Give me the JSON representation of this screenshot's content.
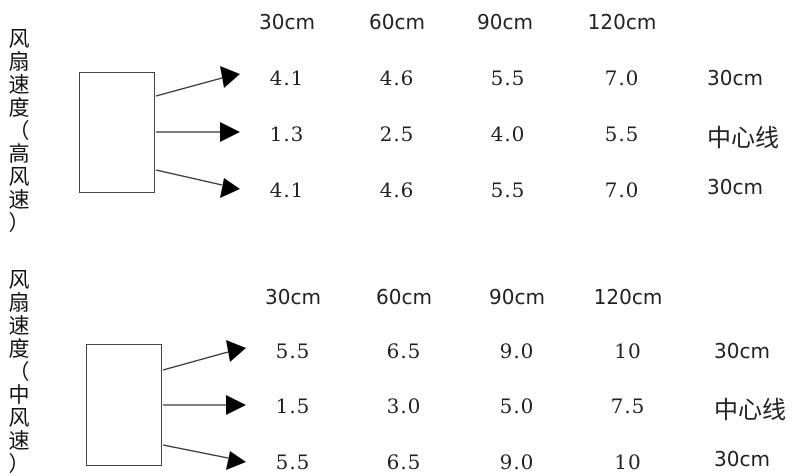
{
  "panels": [
    {
      "label_chars": [
        "风",
        "扇",
        "速",
        "度",
        "（",
        "高",
        "风",
        "速",
        "）"
      ],
      "headers": [
        "30cm",
        "60cm",
        "90cm",
        "120cm"
      ],
      "rows": [
        {
          "values": [
            "4.1",
            "4.6",
            "5.5",
            "7.0"
          ],
          "side": "30cm"
        },
        {
          "values": [
            "1.3",
            "2.5",
            "4.0",
            "5.5"
          ],
          "side": "中心线"
        },
        {
          "values": [
            "4.1",
            "4.6",
            "5.5",
            "7.0"
          ],
          "side": "30cm"
        }
      ]
    },
    {
      "label_chars": [
        "风",
        "扇",
        "速",
        "度",
        "（",
        "中",
        "风",
        "速",
        "）"
      ],
      "headers": [
        "30cm",
        "60cm",
        "90cm",
        "120cm"
      ],
      "rows": [
        {
          "values": [
            "5.5",
            "6.5",
            "9.0",
            "10"
          ],
          "side": "30cm"
        },
        {
          "values": [
            "1.5",
            "3.0",
            "5.0",
            "7.5"
          ],
          "side": "中心线"
        },
        {
          "values": [
            "5.5",
            "6.5",
            "9.0",
            "10"
          ],
          "side": "30cm"
        }
      ]
    }
  ]
}
